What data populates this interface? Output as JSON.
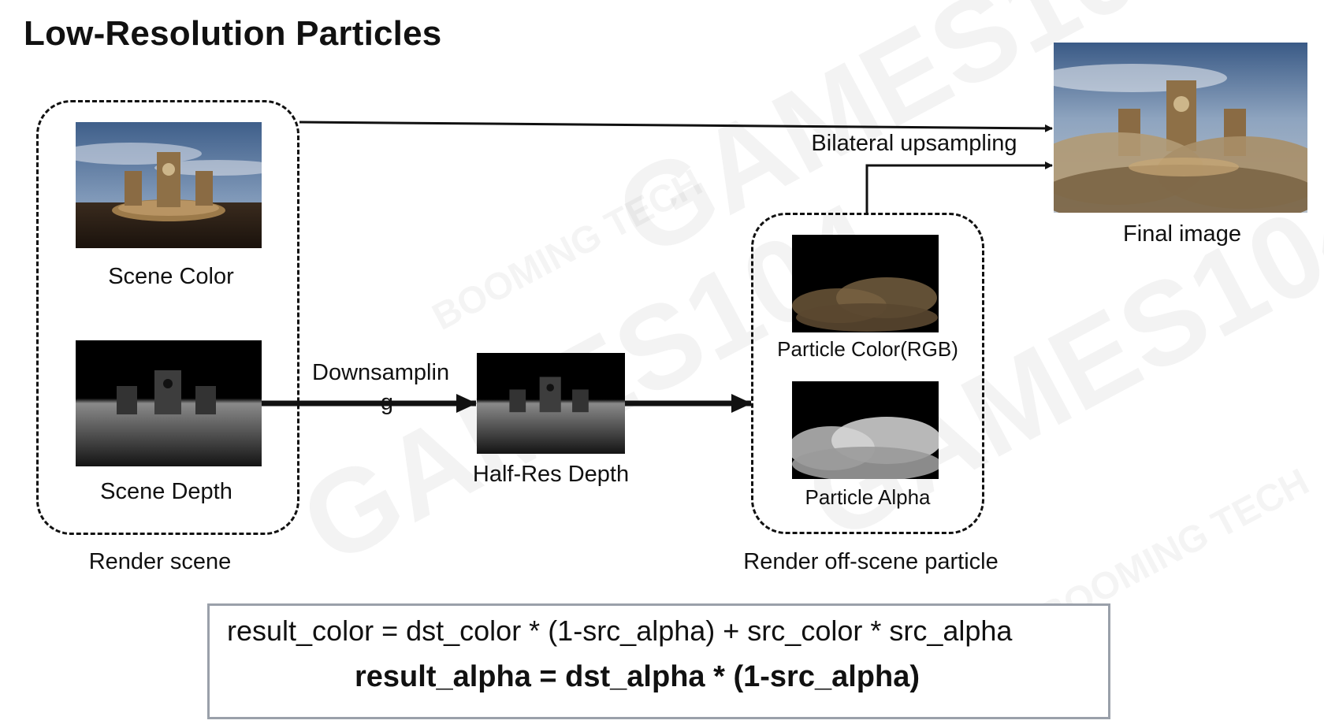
{
  "title": "Low-Resolution Particles",
  "watermark": {
    "main": "GAMES104",
    "secondary": "BOOMING TECH"
  },
  "groups": {
    "render_scene": "Render scene",
    "render_particle": "Render off-scene particle"
  },
  "nodes": {
    "scene_color": "Scene Color",
    "scene_depth": "Scene Depth",
    "half_res_depth": "Half-Res Depth",
    "particle_color": "Particle Color(RGB)",
    "particle_alpha": "Particle Alpha",
    "final_image": "Final image"
  },
  "edges": {
    "downsampling_line1": "Downsamplin",
    "downsampling_line2": "g",
    "bilateral_upsampling": "Bilateral upsampling"
  },
  "formula": {
    "line1": "result_color = dst_color * (1-src_alpha) + src_color * src_alpha",
    "line2": "result_alpha = dst_alpha * (1-src_alpha)"
  }
}
